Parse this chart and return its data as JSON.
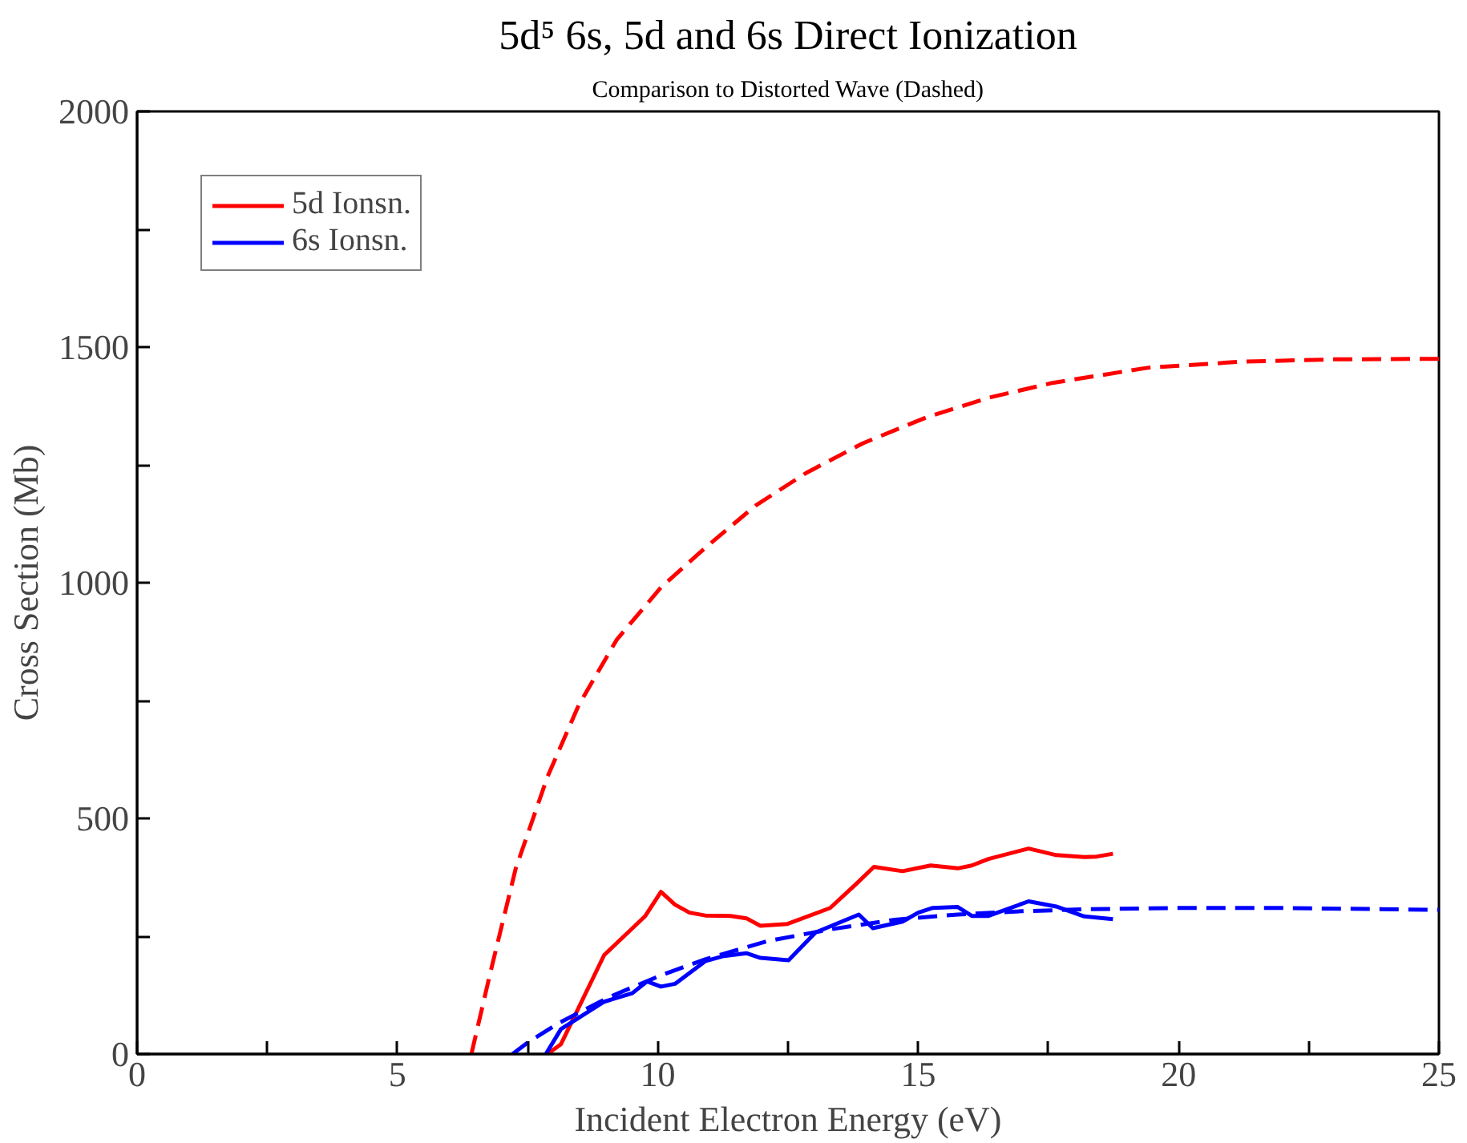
{
  "chart_data": {
    "type": "line",
    "title": "5d⁵ 6s, 5d and 6s Direct Ionization",
    "subtitle": "Comparison to Distorted Wave (Dashed)",
    "xlabel": "Incident Electron Energy (eV)",
    "ylabel": "Cross Section (Mb)",
    "xlim": [
      0,
      25
    ],
    "ylim": [
      0,
      2000
    ],
    "xticks": [
      0,
      {
        "value": 2.5,
        "label": null
      },
      5,
      {
        "value": 7.5,
        "label": null
      },
      10,
      {
        "value": 12.5,
        "label": null
      },
      15,
      {
        "value": 17.5,
        "label": null
      },
      20,
      {
        "value": 22.5,
        "label": null
      },
      25
    ],
    "yticks": [
      0,
      {
        "value": 250,
        "label": null
      },
      500,
      {
        "value": 750,
        "label": null
      },
      1000,
      {
        "value": 1250,
        "label": null
      },
      1500,
      {
        "value": 1750,
        "label": null
      },
      2000
    ],
    "grid": false,
    "legend": "top left",
    "marker": "none",
    "series": [
      {
        "name": "5d Ionsn.",
        "color": "#ff0000",
        "line_style": "solid",
        "x": [
          7.88,
          8.14,
          8.97,
          9.76,
          10.06,
          10.33,
          10.61,
          10.91,
          11.4,
          11.7,
          11.97,
          12.49,
          13.31,
          13.82,
          14.15,
          14.7,
          15.24,
          15.76,
          16.03,
          16.35,
          17.12,
          17.65,
          18.19,
          18.43,
          18.74
        ],
        "values": [
          0,
          21,
          210,
          293,
          344,
          317,
          300,
          294,
          293,
          288,
          272,
          276,
          310,
          362,
          397,
          388,
          400,
          394,
          400,
          414,
          436,
          422,
          418,
          419,
          425
        ]
      },
      {
        "name": "6s Ionsn.",
        "color": "#0000ff",
        "line_style": "solid",
        "x": [
          7.85,
          8.14,
          8.97,
          9.51,
          9.79,
          10.06,
          10.33,
          10.91,
          11.27,
          11.7,
          11.97,
          12.51,
          13.03,
          13.86,
          14.13,
          14.7,
          15.0,
          15.28,
          15.76,
          16.03,
          16.35,
          17.12,
          17.65,
          18.19,
          18.74
        ],
        "values": [
          0,
          53,
          111,
          129,
          154,
          143,
          149,
          197,
          208,
          214,
          204,
          199,
          258,
          296,
          267,
          281,
          300,
          310,
          312,
          293,
          293,
          324,
          313,
          292,
          286
        ]
      },
      {
        "color": "#ff0000",
        "line_style": "dashed",
        "x": [
          6.42,
          6.78,
          7.27,
          7.88,
          8.48,
          9.21,
          10.06,
          10.91,
          11.88,
          12.85,
          13.94,
          15.16,
          16.37,
          17.58,
          19.4,
          21.2,
          23.0,
          25.0
        ],
        "values": [
          0,
          171,
          393,
          588,
          740,
          879,
          990,
          1074,
          1164,
          1233,
          1296,
          1351,
          1393,
          1424,
          1456,
          1469,
          1474,
          1475
        ]
      },
      {
        "color": "#0000ff",
        "line_style": "dashed",
        "x": [
          7.21,
          7.51,
          8.12,
          9.09,
          10.06,
          10.91,
          12.12,
          13.34,
          14.55,
          15.76,
          16.98,
          18.19,
          20.0,
          21.8,
          25.0
        ],
        "values": [
          0,
          25,
          67,
          122,
          167,
          201,
          240,
          265,
          285,
          296,
          303,
          307,
          310,
          310,
          306
        ]
      }
    ]
  }
}
